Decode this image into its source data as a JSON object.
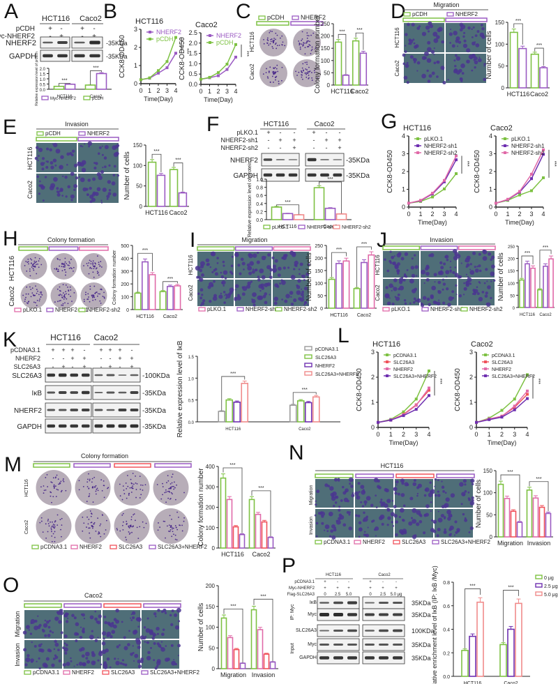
{
  "figure": {
    "colors": {
      "green": "#7dc142",
      "purple": "#9a5ac2",
      "violet": "#6e2fb0",
      "pink": "#e06aa8",
      "red": "#f0525a",
      "salmon": "#f08a8a",
      "gray": "#9a9a9a",
      "blot_band": "#222222"
    },
    "panels": {
      "A": {
        "label": "A",
        "cells": [
          "HCT116",
          "Caco2"
        ],
        "rows": [
          "pCDH",
          "Myc-NHERF2"
        ],
        "signs": [
          [
            "+",
            "-",
            "+",
            "-"
          ],
          [
            "-",
            "+",
            "-",
            "+"
          ]
        ],
        "blots": [
          "NHERF2",
          "GAPDH"
        ],
        "sizes": [
          "35KDa",
          "35KDa"
        ],
        "ylabel": "Relative expression level of protein",
        "legend": [
          "Myc-NHERF2",
          "pCDH"
        ],
        "sig": [
          "***",
          "***"
        ]
      },
      "B": {
        "label": "B"
      },
      "C": {
        "label": "C",
        "legend": [
          "pCDH",
          "NHERF2"
        ],
        "rows": [
          "HCT116",
          "Caco2"
        ],
        "sig": [
          "***",
          "**"
        ]
      },
      "D": {
        "label": "D",
        "title": "Migration",
        "legend": [
          "pCDH",
          "NHERF2"
        ],
        "rows": [
          "HCT116",
          "Caco2"
        ],
        "sig": [
          "***",
          "***"
        ]
      },
      "E": {
        "label": "E",
        "title": "Invasion",
        "legend": [
          "pCDH",
          "NHERF2"
        ],
        "rows": [
          "HCT116",
          "Caco2"
        ],
        "sig": [
          "***",
          "***"
        ]
      },
      "F": {
        "label": "F",
        "cells": [
          "HCT116",
          "Caco2"
        ],
        "rows": [
          "pLKO.1",
          "NHERF2-sh1",
          "NHERF2-sh2"
        ],
        "signs": [
          [
            "+",
            "-",
            "-",
            "+",
            "-",
            "-"
          ],
          [
            "-",
            "+",
            "+",
            "-",
            "+",
            "+"
          ],
          [
            "-",
            "-",
            "+",
            "-",
            "-",
            "+"
          ]
        ],
        "blots": [
          "NHERF2",
          "GAPDH"
        ],
        "sizes": [
          "35KDa",
          "35KDa"
        ],
        "legend": [
          "pLKO.1",
          "NHERF2-sh1",
          "NHERF2-sh2"
        ]
      },
      "G": {
        "label": "G"
      },
      "H": {
        "label": "H",
        "title": "Colony formation",
        "rows": [
          "HCT116",
          "Caco2"
        ],
        "legend": [
          "pLKO.1",
          "NHERF2-sh1",
          "NHERF2-sh2"
        ]
      },
      "I": {
        "label": "I",
        "title": "Migration",
        "rows": [
          "HCT116",
          "Caco2"
        ],
        "legend": [
          "pLKO.1",
          "NHERF2-sh1",
          "NHERF2-sh2"
        ]
      },
      "J": {
        "label": "J",
        "title": "Invasion",
        "rows": [
          "HCT116",
          "Caco2"
        ],
        "legend": [
          "pLKO.1",
          "NHERF2-sh1",
          "NHERF2-sh2"
        ]
      },
      "K": {
        "label": "K",
        "cells": [
          "HCT116",
          "Caco2"
        ],
        "rows": [
          "pCDNA3.1",
          "NHERF2",
          "SLC26A3"
        ],
        "signs": [
          [
            "+",
            "+",
            "+",
            "-",
            "+",
            "+",
            "+",
            "-"
          ],
          [
            "-",
            "-",
            "+",
            "+",
            "-",
            "-",
            "+",
            "+"
          ],
          [
            "-",
            "+",
            "-",
            "+",
            "-",
            "+",
            "-",
            "+"
          ]
        ],
        "blots": [
          "SLC26A3",
          "IκB",
          "NHERF2",
          "GAPDH"
        ],
        "sizes": [
          "100KDa",
          "35KDa",
          "35KDa",
          "35KDa"
        ],
        "legend": [
          "pCDNA3.1",
          "SLC26A3",
          "NHERF2",
          "SLC26A3+NHERF2"
        ]
      },
      "L": {
        "label": "L"
      },
      "M": {
        "label": "M",
        "title": "Colony formation",
        "rows": [
          "HCT116",
          "Caco2"
        ],
        "legend": [
          "pCDNA3.1",
          "NHERF2",
          "SLC26A3",
          "SLC26A3+NHERF2"
        ]
      },
      "N": {
        "label": "N",
        "title": "HCT116",
        "rows": [
          "Migration",
          "Invasion"
        ],
        "legend": [
          "pCDNA3.1",
          "NHERF2",
          "SLC26A3",
          "SLC26A3+NHERF2"
        ]
      },
      "O": {
        "label": "O",
        "title": "Caco2",
        "rows": [
          "Migration",
          "Invasion"
        ],
        "legend": [
          "pCDNA3.1",
          "NHERF2",
          "SLC26A3",
          "SLC26A3+NHERF2"
        ]
      },
      "P": {
        "label": "P",
        "cells": [
          "HCT116",
          "Caco2"
        ],
        "rows": [
          "pCDNA3.1",
          "Myc-NHERF2",
          "Flag-SLC26A3"
        ],
        "signs": [
          [
            "+",
            "-",
            "-",
            "+",
            "-",
            "-"
          ],
          [
            "+",
            "+",
            "+",
            "+",
            "+",
            "+"
          ],
          [
            "0",
            "2.5",
            "5.0",
            "0",
            "2.5",
            "5.0 μg"
          ]
        ],
        "groups": [
          "IP: Myc",
          "Input"
        ],
        "blots": [
          "IκB",
          "Myc",
          "SLC26A3",
          "Myc",
          "GAPDH"
        ],
        "sizes": [
          "35KDa",
          "35KDa",
          "100KDa",
          "35KDa",
          "35KDa"
        ]
      }
    }
  },
  "chart_data": [
    {
      "id": "A",
      "type": "bar",
      "categories": [
        "HCT116",
        "Caco2"
      ],
      "series": [
        {
          "name": "pCDH",
          "values": [
            0.28,
            0.4
          ]
        },
        {
          "name": "Myc-NHERF2",
          "values": [
            0.48,
            1.5
          ]
        }
      ],
      "ylabel": "Relative expression level of protein",
      "ylim": [
        0,
        2.0
      ],
      "yticks": [
        0,
        0.5,
        1.0,
        1.5,
        2.0
      ]
    },
    {
      "id": "B1",
      "type": "line",
      "title": "HCT116",
      "x": [
        0,
        1,
        2,
        3,
        4
      ],
      "series": [
        {
          "name": "NHERF2",
          "values": [
            0.22,
            0.3,
            0.58,
            0.88,
            1.68
          ]
        },
        {
          "name": "pCDH",
          "values": [
            0.22,
            0.32,
            0.72,
            1.22,
            2.55
          ]
        }
      ],
      "xlabel": "Time(Day)",
      "ylabel": "CCK8-OD450",
      "ylim": [
        0,
        3
      ],
      "sig": "***"
    },
    {
      "id": "B2",
      "type": "line",
      "title": "Caco2",
      "x": [
        0,
        1,
        2,
        3,
        4
      ],
      "series": [
        {
          "name": "NHERF2",
          "values": [
            0.25,
            0.32,
            0.42,
            0.72,
            1.32
          ]
        },
        {
          "name": "pCDH",
          "values": [
            0.25,
            0.34,
            0.57,
            0.98,
            1.93
          ]
        }
      ],
      "xlabel": "Time(Day)",
      "ylabel": "CCK8-OD450",
      "ylim": [
        0,
        2.5
      ],
      "sig": "***"
    },
    {
      "id": "C",
      "type": "bar",
      "categories": [
        "HCT116",
        "Caco2"
      ],
      "series": [
        {
          "name": "pCDH",
          "values": [
            175,
            180
          ]
        },
        {
          "name": "NHERF2",
          "values": [
            40,
            130
          ]
        }
      ],
      "ylabel": "Colony formation number",
      "ylim": [
        0,
        250
      ]
    },
    {
      "id": "D",
      "type": "bar",
      "categories": [
        "HCT116",
        "Caco2"
      ],
      "series": [
        {
          "name": "pCDH",
          "values": [
            127,
            77
          ]
        },
        {
          "name": "NHERF2",
          "values": [
            90,
            46
          ]
        }
      ],
      "ylabel": "Number of cells",
      "ylim": [
        0,
        150
      ]
    },
    {
      "id": "E",
      "type": "bar",
      "categories": [
        "HCT116",
        "Caco2"
      ],
      "series": [
        {
          "name": "pCDH",
          "values": [
            108,
            90
          ]
        },
        {
          "name": "NHERF2",
          "values": [
            76,
            33
          ]
        }
      ],
      "ylabel": "Number of cells",
      "ylim": [
        0,
        150
      ]
    },
    {
      "id": "F",
      "type": "bar",
      "categories": [
        "HCT116",
        "Caco2"
      ],
      "series": [
        {
          "name": "pLKO.1",
          "values": [
            0.31,
            0.79
          ]
        },
        {
          "name": "NHERF2-sh1",
          "values": [
            0.15,
            0.28
          ]
        },
        {
          "name": "NHERF2-sh2",
          "values": [
            0.12,
            0.14
          ]
        }
      ],
      "ylabel": "Relative expression level of protein",
      "ylim": [
        0,
        1.0
      ]
    },
    {
      "id": "G1",
      "type": "line",
      "title": "HCT116",
      "x": [
        0,
        1,
        2,
        3,
        4
      ],
      "series": [
        {
          "name": "pLKO.1",
          "values": [
            0.22,
            0.32,
            0.57,
            1.02,
            1.88
          ]
        },
        {
          "name": "NHERF2-sh1",
          "values": [
            0.22,
            0.36,
            0.74,
            1.42,
            2.66
          ]
        },
        {
          "name": "NHERF2-sh2",
          "values": [
            0.22,
            0.38,
            0.78,
            1.5,
            2.88
          ]
        }
      ],
      "xlabel": "Time(Day)",
      "ylabel": "CCK8-OD450",
      "ylim": [
        0,
        4
      ]
    },
    {
      "id": "G2",
      "type": "line",
      "title": "Caco2",
      "x": [
        0,
        1,
        2,
        3,
        4
      ],
      "series": [
        {
          "name": "pLKO.1",
          "values": [
            0.22,
            0.38,
            0.68,
            0.92,
            1.65
          ]
        },
        {
          "name": "NHERF2-sh1",
          "values": [
            0.22,
            0.42,
            0.84,
            1.6,
            2.97
          ]
        },
        {
          "name": "NHERF2-sh2",
          "values": [
            0.22,
            0.44,
            0.88,
            1.85,
            3.22
          ]
        }
      ],
      "xlabel": "Time(Day)",
      "ylabel": "CCK8-OD450",
      "ylim": [
        0,
        4
      ]
    },
    {
      "id": "H",
      "type": "bar",
      "categories": [
        "HCT116",
        "Caco2"
      ],
      "series": [
        {
          "name": "pLKO.1",
          "values": [
            128,
            140
          ]
        },
        {
          "name": "NHERF2-sh1",
          "values": [
            372,
            180
          ]
        },
        {
          "name": "NHERF2-sh2",
          "values": [
            272,
            185
          ]
        }
      ],
      "ylabel": "Colony formation number",
      "ylim": [
        0,
        500
      ]
    },
    {
      "id": "I",
      "type": "bar",
      "categories": [
        "HCT116",
        "Caco2"
      ],
      "series": [
        {
          "name": "pLKO.1",
          "values": [
            115,
            78
          ]
        },
        {
          "name": "NHERF2-sh1",
          "values": [
            178,
            182
          ]
        },
        {
          "name": "NHERF2-sh2",
          "values": [
            188,
            212
          ]
        }
      ],
      "ylabel": "Number of cells",
      "ylim": [
        0,
        250
      ]
    },
    {
      "id": "J",
      "type": "bar",
      "categories": [
        "HCT116",
        "Caco2"
      ],
      "series": [
        {
          "name": "pLKO.1",
          "values": [
            112,
            72
          ]
        },
        {
          "name": "NHERF2-sh1",
          "values": [
            178,
            168
          ]
        },
        {
          "name": "NHERF2-sh2",
          "values": [
            160,
            198
          ]
        }
      ],
      "ylabel": "Number of cells",
      "ylim": [
        0,
        250
      ]
    },
    {
      "id": "K",
      "type": "bar",
      "categories": [
        "HCT116",
        "Caco2"
      ],
      "series": [
        {
          "name": "pCDNA3.1",
          "values": [
            0.24,
            0.38
          ]
        },
        {
          "name": "SLC26A3",
          "values": [
            0.5,
            0.48
          ]
        },
        {
          "name": "NHERF2",
          "values": [
            0.45,
            0.44
          ]
        },
        {
          "name": "SLC26A3+NHERF2",
          "values": [
            0.88,
            0.57
          ]
        }
      ],
      "ylabel": "Relative expression level of IκB",
      "ylim": [
        0,
        1.5
      ]
    },
    {
      "id": "L1",
      "type": "line",
      "title": "HCT116",
      "x": [
        0,
        1,
        2,
        3,
        4
      ],
      "series": [
        {
          "name": "pCDNA3.1",
          "values": [
            0.2,
            0.32,
            0.62,
            1.13,
            2.25
          ]
        },
        {
          "name": "SLC26A3",
          "values": [
            0.2,
            0.29,
            0.52,
            0.9,
            1.48
          ]
        },
        {
          "name": "NHERF2",
          "values": [
            0.2,
            0.3,
            0.5,
            0.88,
            1.57
          ]
        },
        {
          "name": "SLC26A3+NHERF2",
          "values": [
            0.2,
            0.29,
            0.47,
            0.72,
            1.27
          ]
        }
      ],
      "xlabel": "Time(Day)",
      "ylabel": "CCK8-OD450",
      "ylim": [
        0,
        3
      ]
    },
    {
      "id": "L2",
      "type": "line",
      "title": "Caco2",
      "x": [
        0,
        1,
        2,
        3,
        4
      ],
      "series": [
        {
          "name": "pCDNA3.1",
          "values": [
            0.2,
            0.37,
            0.68,
            1.13,
            2.1
          ]
        },
        {
          "name": "SLC26A3",
          "values": [
            0.2,
            0.33,
            0.45,
            0.8,
            1.32
          ]
        },
        {
          "name": "NHERF2",
          "values": [
            0.2,
            0.34,
            0.44,
            0.85,
            1.45
          ]
        },
        {
          "name": "SLC26A3+NHERF2",
          "values": [
            0.2,
            0.31,
            0.41,
            0.7,
            1.15
          ]
        }
      ],
      "xlabel": "Time(Day)",
      "ylabel": "CCK8-OD450",
      "ylim": [
        0,
        3
      ]
    },
    {
      "id": "M",
      "type": "bar",
      "categories": [
        "HCT116",
        "Caco2"
      ],
      "series": [
        {
          "name": "pCDNA3.1",
          "values": [
            343,
            238
          ]
        },
        {
          "name": "NHERF2",
          "values": [
            238,
            165
          ]
        },
        {
          "name": "SLC26A3",
          "values": [
            104,
            128
          ]
        },
        {
          "name": "SLC26A3+NHERF2",
          "values": [
            66,
            52
          ]
        }
      ],
      "ylabel": "Colony formation number",
      "ylim": [
        0,
        400
      ]
    },
    {
      "id": "N",
      "type": "bar",
      "categories": [
        "Migration",
        "Invasion"
      ],
      "series": [
        {
          "name": "pCDNA3.1",
          "values": [
            119,
            106
          ]
        },
        {
          "name": "NHERF2",
          "values": [
            87,
            88
          ]
        },
        {
          "name": "SLC26A3",
          "values": [
            58,
            67
          ]
        },
        {
          "name": "SLC26A3+NHERF2",
          "values": [
            33,
            53
          ]
        }
      ],
      "ylabel": "Number of cells",
      "ylim": [
        0,
        150
      ]
    },
    {
      "id": "O",
      "type": "bar",
      "categories": [
        "Migration",
        "Invasion"
      ],
      "series": [
        {
          "name": "pCDNA3.1",
          "values": [
            122,
            142
          ]
        },
        {
          "name": "NHERF2",
          "values": [
            75,
            94
          ]
        },
        {
          "name": "SLC26A3",
          "values": [
            46,
            35
          ]
        },
        {
          "name": "SLC26A3+NHERF2",
          "values": [
            13,
            16
          ]
        }
      ],
      "ylabel": "Number of cells",
      "ylim": [
        0,
        200
      ]
    },
    {
      "id": "P",
      "type": "bar",
      "categories": [
        "HCT116",
        "Caco2"
      ],
      "series": [
        {
          "name": "0 μg",
          "values": [
            0.22,
            0.27
          ]
        },
        {
          "name": "2.5 μg",
          "values": [
            0.34,
            0.4
          ]
        },
        {
          "name": "5.0 μg",
          "values": [
            0.63,
            0.62
          ]
        }
      ],
      "ylabel": "Relative enrichment level of IκB (IP: IκB /Myc)",
      "ylim": [
        0,
        0.8
      ]
    }
  ]
}
